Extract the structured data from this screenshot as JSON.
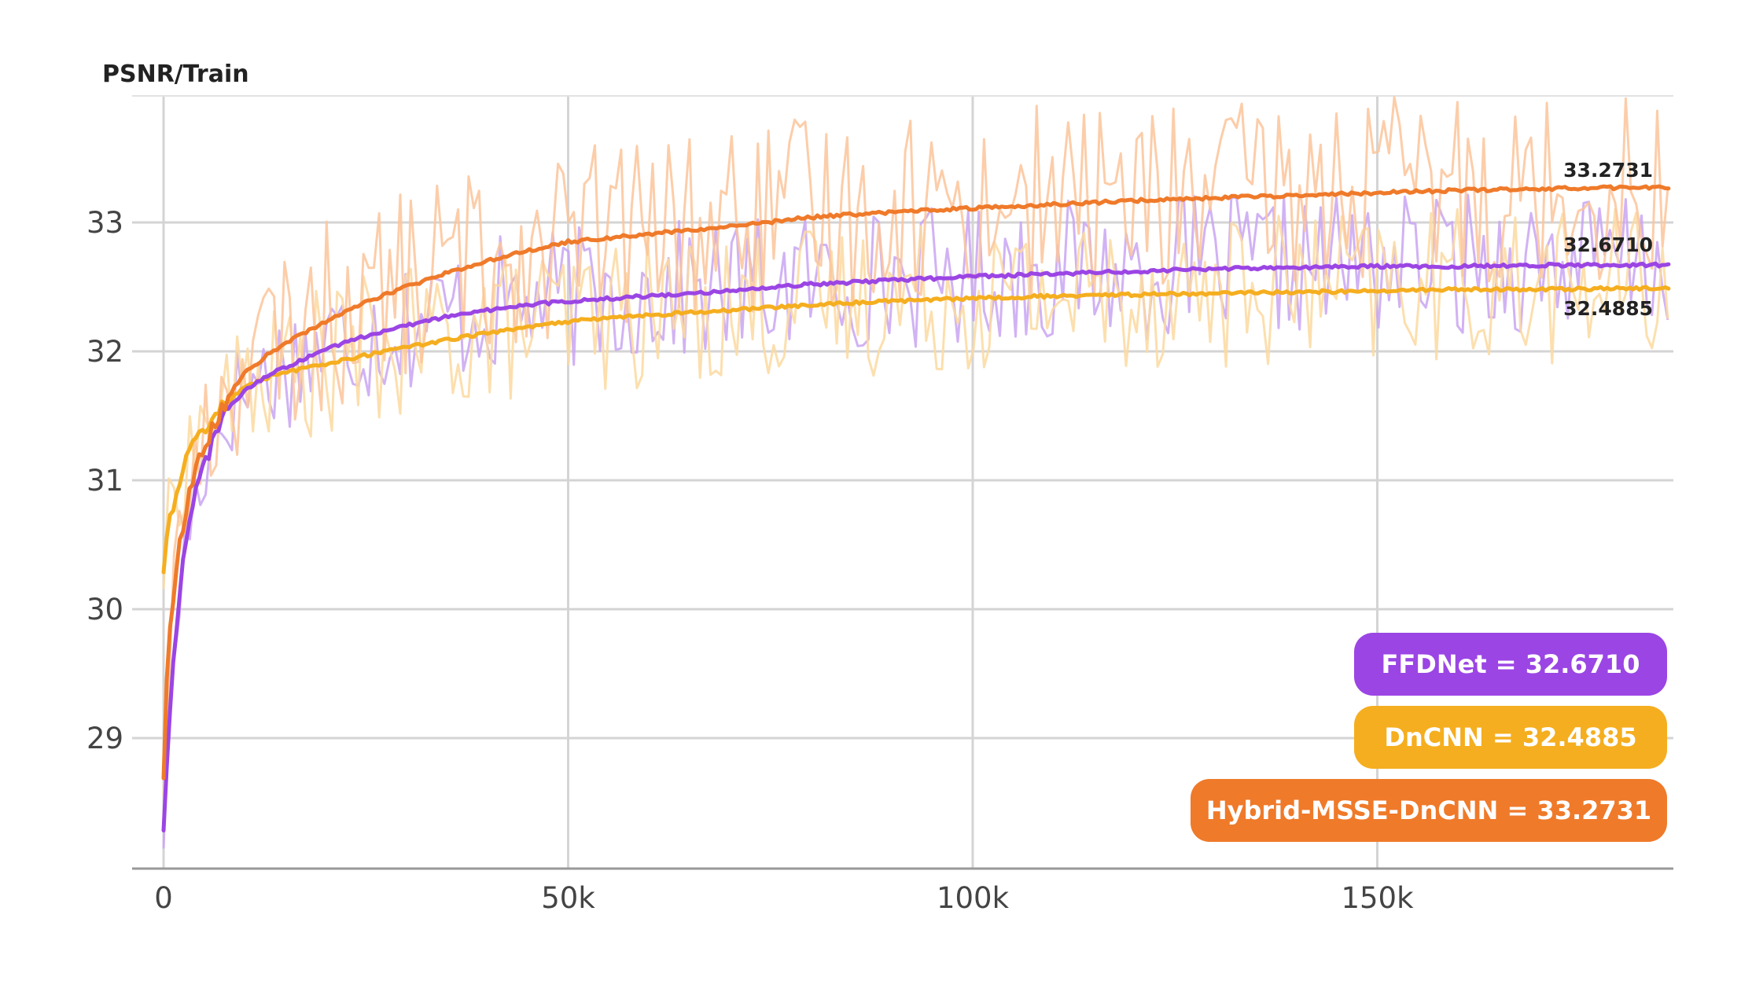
{
  "chart_data": {
    "type": "line",
    "title": "PSNR/Train",
    "xlabel": "",
    "ylabel": "",
    "xlim": [
      0,
      186000
    ],
    "ylim": [
      28,
      34
    ],
    "x_ticks": [
      0,
      50000,
      100000,
      150000
    ],
    "x_tick_labels": [
      "0",
      "50k",
      "100k",
      "150k"
    ],
    "y_ticks": [
      29,
      30,
      31,
      32,
      33
    ],
    "y_tick_labels": [
      "29",
      "30",
      "31",
      "32",
      "33"
    ],
    "grid": true,
    "legend_position": "bottom-right",
    "series": [
      {
        "name": "FFDNet",
        "legend_label": "FFDNet = 32.6710",
        "end_value_label": "32.6710",
        "color": "#9b45e4",
        "raw_color": "#c9a5f2",
        "noise": 0.55,
        "x": [
          0,
          500,
          1500,
          2500,
          4000,
          6000,
          8000,
          10000,
          13000,
          16000,
          20000,
          25000,
          30000,
          35000,
          40000,
          45000,
          50000,
          55000,
          60000,
          70000,
          80000,
          90000,
          100000,
          110000,
          120000,
          130000,
          140000,
          150000,
          160000,
          170000,
          180000,
          186000
        ],
        "y": [
          28.3,
          28.9,
          29.8,
          30.4,
          30.9,
          31.3,
          31.55,
          31.7,
          31.82,
          31.9,
          32.02,
          32.12,
          32.2,
          32.27,
          32.32,
          32.36,
          32.39,
          32.41,
          32.43,
          32.47,
          32.52,
          32.55,
          32.58,
          32.6,
          32.62,
          32.64,
          32.65,
          32.66,
          32.66,
          32.67,
          32.67,
          32.671
        ]
      },
      {
        "name": "DnCNN",
        "legend_label": "DnCNN = 32.4885",
        "end_value_label": "32.4885",
        "color": "#f5ae1f",
        "raw_color": "#fcd9a0",
        "noise": 0.6,
        "x": [
          0,
          500,
          1500,
          2500,
          4000,
          6000,
          8000,
          10000,
          13000,
          16000,
          20000,
          25000,
          30000,
          35000,
          40000,
          45000,
          50000,
          55000,
          60000,
          70000,
          80000,
          90000,
          100000,
          110000,
          120000,
          130000,
          140000,
          150000,
          160000,
          170000,
          180000,
          186000
        ],
        "y": [
          30.3,
          30.6,
          30.9,
          31.1,
          31.3,
          31.5,
          31.62,
          31.72,
          31.8,
          31.85,
          31.9,
          31.97,
          32.03,
          32.09,
          32.14,
          32.19,
          32.23,
          32.26,
          32.28,
          32.32,
          32.36,
          32.39,
          32.41,
          32.43,
          32.44,
          32.45,
          32.46,
          32.47,
          32.48,
          32.48,
          32.49,
          32.4885
        ]
      },
      {
        "name": "Hybrid-MSSE-DnCNN",
        "legend_label": "Hybrid-MSSE-DnCNN = 33.2731",
        "end_value_label": "33.2731",
        "color": "#ef7a2a",
        "raw_color": "#fbc49a",
        "noise": 0.75,
        "x": [
          0,
          500,
          1500,
          2500,
          4000,
          6000,
          8000,
          10000,
          13000,
          16000,
          20000,
          25000,
          30000,
          35000,
          40000,
          45000,
          50000,
          55000,
          60000,
          70000,
          80000,
          90000,
          100000,
          110000,
          120000,
          130000,
          140000,
          150000,
          160000,
          170000,
          180000,
          186000
        ],
        "y": [
          28.7,
          29.6,
          30.3,
          30.7,
          31.1,
          31.4,
          31.65,
          31.83,
          31.98,
          32.1,
          32.23,
          32.38,
          32.5,
          32.61,
          32.7,
          32.78,
          32.85,
          32.88,
          32.91,
          32.97,
          33.04,
          33.08,
          33.11,
          33.14,
          33.17,
          33.19,
          33.21,
          33.23,
          33.25,
          33.26,
          33.27,
          33.2731
        ]
      }
    ]
  }
}
